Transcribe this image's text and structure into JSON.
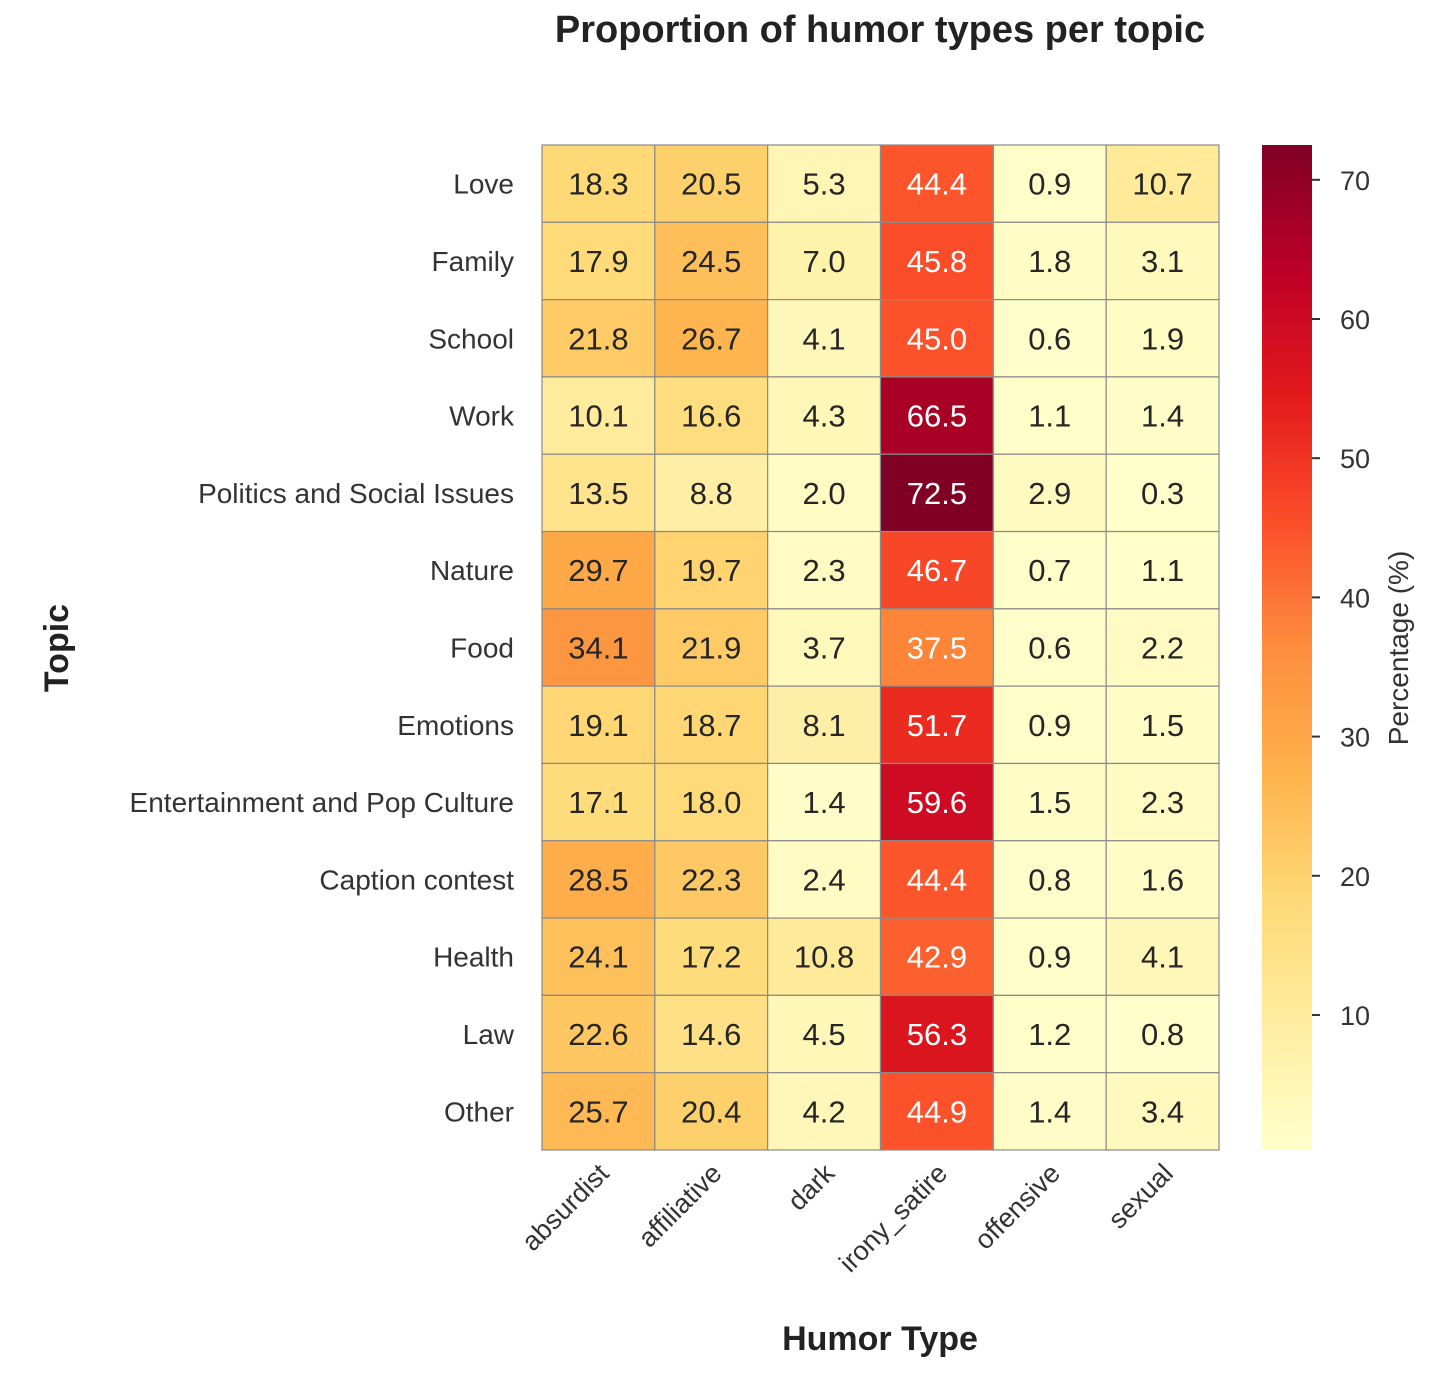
{
  "chart_data": {
    "type": "heatmap",
    "title": "Proportion of humor types per topic",
    "xlabel": "Humor Type",
    "ylabel": "Topic",
    "x_categories": [
      "absurdist",
      "affiliative",
      "dark",
      "irony_satire",
      "offensive",
      "sexual"
    ],
    "y_categories": [
      "Love",
      "Family",
      "School",
      "Work",
      "Politics and Social Issues",
      "Nature",
      "Food",
      "Emotions",
      "Entertainment and Pop Culture",
      "Caption contest",
      "Health",
      "Law",
      "Other"
    ],
    "values": [
      [
        18.3,
        20.5,
        5.3,
        44.4,
        0.9,
        10.7
      ],
      [
        17.9,
        24.5,
        7.0,
        45.8,
        1.8,
        3.1
      ],
      [
        21.8,
        26.7,
        4.1,
        45.0,
        0.6,
        1.9
      ],
      [
        10.1,
        16.6,
        4.3,
        66.5,
        1.1,
        1.4
      ],
      [
        13.5,
        8.8,
        2.0,
        72.5,
        2.9,
        0.3
      ],
      [
        29.7,
        19.7,
        2.3,
        46.7,
        0.7,
        1.1
      ],
      [
        34.1,
        21.9,
        3.7,
        37.5,
        0.6,
        2.2
      ],
      [
        19.1,
        18.7,
        8.1,
        51.7,
        0.9,
        1.5
      ],
      [
        17.1,
        18.0,
        1.4,
        59.6,
        1.5,
        2.3
      ],
      [
        28.5,
        22.3,
        2.4,
        44.4,
        0.8,
        1.6
      ],
      [
        24.1,
        17.2,
        10.8,
        42.9,
        0.9,
        4.1
      ],
      [
        22.6,
        14.6,
        4.5,
        56.3,
        1.2,
        0.8
      ],
      [
        25.7,
        20.4,
        4.2,
        44.9,
        1.4,
        3.4
      ]
    ],
    "colormap": "YlOrRd",
    "colorbar": {
      "label": "Percentage (%)",
      "ticks": [
        10,
        20,
        30,
        40,
        50,
        60,
        70
      ],
      "range": [
        0.3,
        72.5
      ]
    }
  }
}
